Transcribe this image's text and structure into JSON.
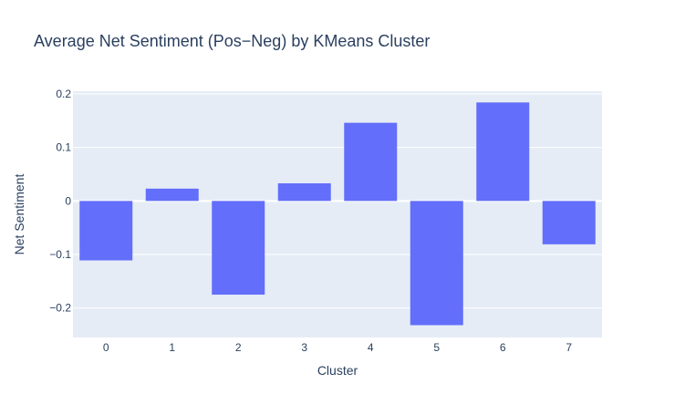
{
  "chart_data": {
    "type": "bar",
    "title": "Average Net Sentiment (Pos−Neg) by KMeans Cluster",
    "xlabel": "Cluster",
    "ylabel": "Net Sentiment",
    "categories": [
      "0",
      "1",
      "2",
      "3",
      "4",
      "5",
      "6",
      "7"
    ],
    "values": [
      -0.111,
      0.023,
      -0.175,
      0.033,
      0.146,
      -0.232,
      0.184,
      -0.081
    ],
    "ylim": [
      -0.255,
      0.205
    ],
    "yticks": [
      0.2,
      0.1,
      0,
      -0.1,
      -0.2
    ],
    "ytick_labels": [
      "0.2",
      "0.1",
      "0",
      "−0.1",
      "−0.2"
    ],
    "grid": true,
    "colors": {
      "bar": "#636efa",
      "plot_bg": "#e5ecf6",
      "grid": "#ffffff",
      "text": "#2a3f5f"
    }
  }
}
